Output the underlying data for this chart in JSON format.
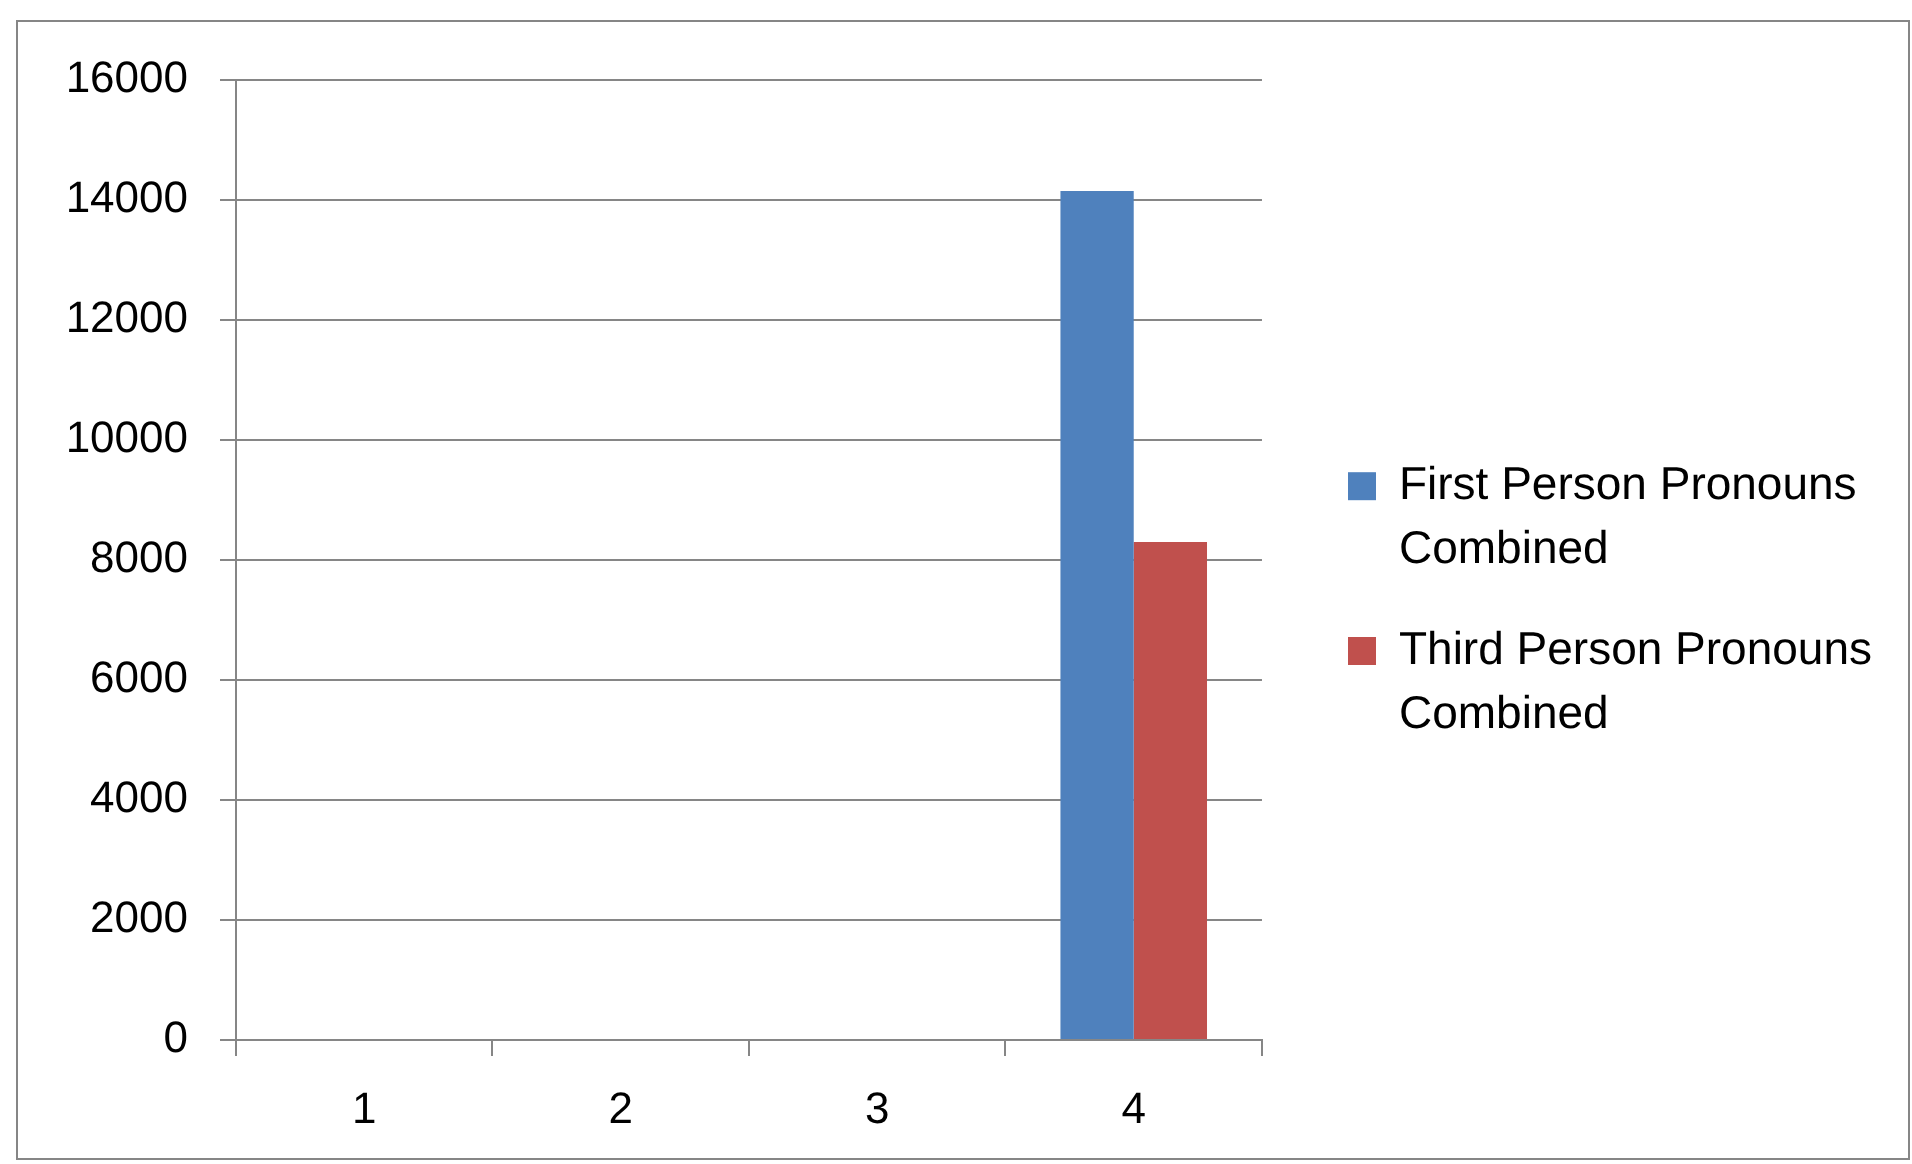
{
  "chart_data": {
    "type": "bar",
    "categories": [
      "1",
      "2",
      "3",
      "4"
    ],
    "series": [
      {
        "name": "First Person Pronouns Combined",
        "color": "#4f81bd",
        "values": [
          null,
          null,
          null,
          14150
        ]
      },
      {
        "name": "Third Person Pronouns Combined",
        "color": "#c0504d",
        "values": [
          null,
          null,
          null,
          8300
        ]
      }
    ],
    "ylim": [
      0,
      16000
    ],
    "yticks": [
      0,
      2000,
      4000,
      6000,
      8000,
      10000,
      12000,
      14000,
      16000
    ],
    "grid": "y",
    "legend": "right"
  }
}
